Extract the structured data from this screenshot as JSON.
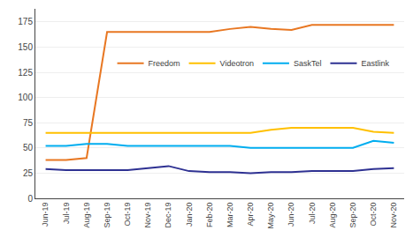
{
  "chart_data": {
    "type": "line",
    "categories": [
      "Jun-19",
      "Jul-19",
      "Aug-19",
      "Sep-19",
      "Oct-19",
      "Nov-19",
      "Dec-19",
      "Jan-20",
      "Feb-20",
      "Mar-20",
      "Apr-20",
      "May-20",
      "Jun-20",
      "Jul-20",
      "Aug-20",
      "Sep-20",
      "Oct-20",
      "Nov-20"
    ],
    "series": [
      {
        "name": "Freedom",
        "color": "#E87722",
        "values": [
          38,
          38,
          40,
          165,
          165,
          165,
          165,
          165,
          165,
          168,
          170,
          168,
          167,
          172,
          172,
          172,
          172,
          172
        ]
      },
      {
        "name": "Videotron",
        "color": "#FFC000",
        "values": [
          65,
          65,
          65,
          65,
          65,
          65,
          65,
          65,
          65,
          65,
          65,
          68,
          70,
          70,
          70,
          70,
          66,
          65
        ]
      },
      {
        "name": "SaskTel",
        "color": "#00ADEF",
        "values": [
          52,
          52,
          54,
          54,
          52,
          52,
          52,
          52,
          52,
          52,
          50,
          50,
          50,
          50,
          50,
          50,
          57,
          55
        ]
      },
      {
        "name": "Eastlink",
        "color": "#2E3192",
        "values": [
          29,
          28,
          28,
          28,
          28,
          30,
          32,
          27,
          26,
          26,
          25,
          26,
          26,
          27,
          27,
          27,
          29,
          30
        ]
      }
    ],
    "ylim": [
      0,
      188
    ],
    "yticks": [
      0,
      25,
      50,
      75,
      100,
      125,
      150,
      175
    ],
    "grid": true,
    "legend": "upper left"
  }
}
